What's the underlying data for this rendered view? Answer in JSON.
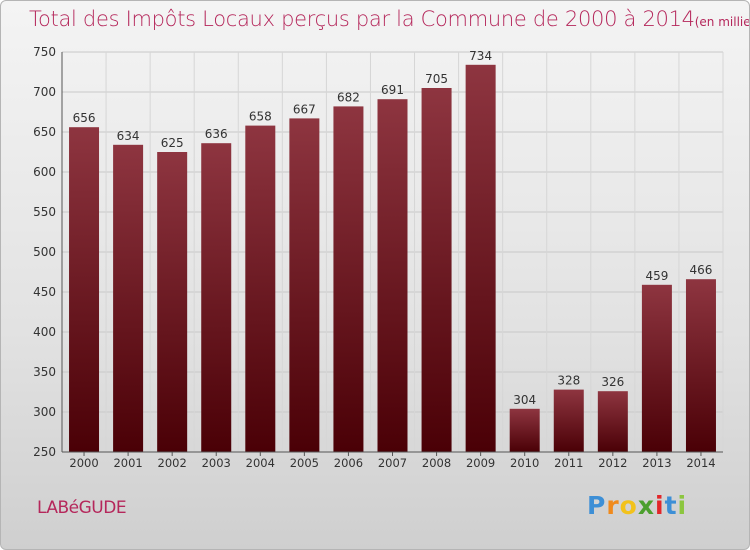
{
  "title": "Total des Impôts Locaux perçus par la Commune de 2000 à 2014",
  "title_unit": "(en milliers d'€)",
  "commune": "LABéGUDE",
  "logo": {
    "letters": [
      "P",
      "r",
      "o",
      "x",
      "i",
      "t",
      "i"
    ],
    "colors": [
      "#3d8fd6",
      "#f08a1c",
      "#f2c21b",
      "#4c9f2e",
      "#e2262a",
      "#3d8fd6",
      "#8cc63f"
    ]
  },
  "chart_data": {
    "type": "bar",
    "categories": [
      "2000",
      "2001",
      "2002",
      "2003",
      "2004",
      "2005",
      "2006",
      "2007",
      "2008",
      "2009",
      "2010",
      "2011",
      "2012",
      "2013",
      "2014"
    ],
    "values": [
      656,
      634,
      625,
      636,
      658,
      667,
      682,
      691,
      705,
      734,
      304,
      328,
      326,
      459,
      466
    ],
    "ylim": [
      250,
      750
    ],
    "yticks": [
      250,
      300,
      350,
      400,
      450,
      500,
      550,
      600,
      650,
      700,
      750
    ],
    "grid": true,
    "bar_color": "#7a1a24"
  }
}
